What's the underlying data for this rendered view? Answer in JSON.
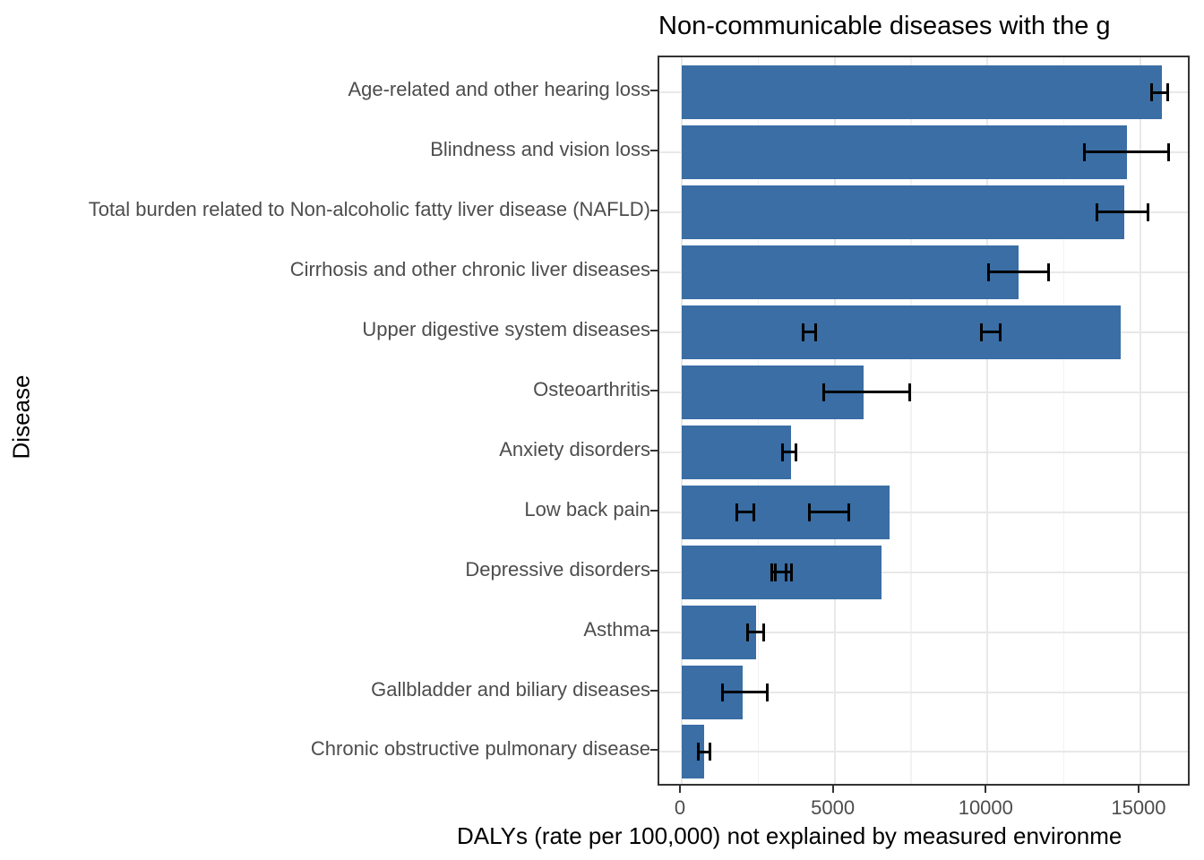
{
  "chart_data": {
    "type": "bar",
    "orientation": "horizontal",
    "title": "Non-communicable diseases with the g",
    "title_note": "title text clipped at right edge of image",
    "xlabel": "DALYs (rate per 100,000) not explained by measured environme",
    "xlabel_note": "x-axis label text clipped at right edge of image",
    "ylabel": "Disease",
    "x_ticks": [
      0,
      5000,
      10000,
      15000
    ],
    "x_minor_gridlines": [
      2500,
      7500,
      12500
    ],
    "xlim": [
      -730,
      16680
    ],
    "grid": "on",
    "legend": "none",
    "categories": [
      "Age-related and other hearing loss",
      "Blindness and vision loss",
      "Total burden related to Non-alcoholic fatty liver disease (NAFLD)",
      "Cirrhosis and other chronic liver diseases",
      "Upper digestive system diseases",
      "Osteoarthritis",
      "Anxiety disorders",
      "Low back pain",
      "Depressive disorders",
      "Asthma",
      "Gallbladder and biliary diseases",
      "Chronic obstructive pulmonary disease"
    ],
    "values": [
      15700,
      14550,
      14460,
      11010,
      14360,
      5940,
      3560,
      6790,
      6520,
      2420,
      1980,
      730
    ],
    "error_bars": [
      [
        [
          15360,
          15900
        ]
      ],
      [
        [
          13170,
          15920
        ]
      ],
      [
        [
          13580,
          15260
        ]
      ],
      [
        [
          10040,
          11990
        ]
      ],
      [
        [
          3980,
          4370
        ],
        [
          9790,
          10430
        ]
      ],
      [
        [
          4640,
          7450
        ]
      ],
      [
        [
          3300,
          3740
        ]
      ],
      [
        [
          1790,
          2370
        ],
        [
          4180,
          5450
        ]
      ],
      [
        [
          2930,
          3420
        ],
        [
          3060,
          3590
        ]
      ],
      [
        [
          2150,
          2670
        ]
      ],
      [
        [
          1330,
          2790
        ]
      ],
      [
        [
          550,
          910
        ]
      ]
    ],
    "colors": {
      "bar_fill": "#3A6EA5",
      "error_bar": "#000000",
      "grid_major": "#E8E8E8",
      "grid_minor": "#F2F2F2",
      "panel_border": "#333333",
      "tick_text": "#4d4d4d",
      "title_text": "#000000"
    }
  }
}
